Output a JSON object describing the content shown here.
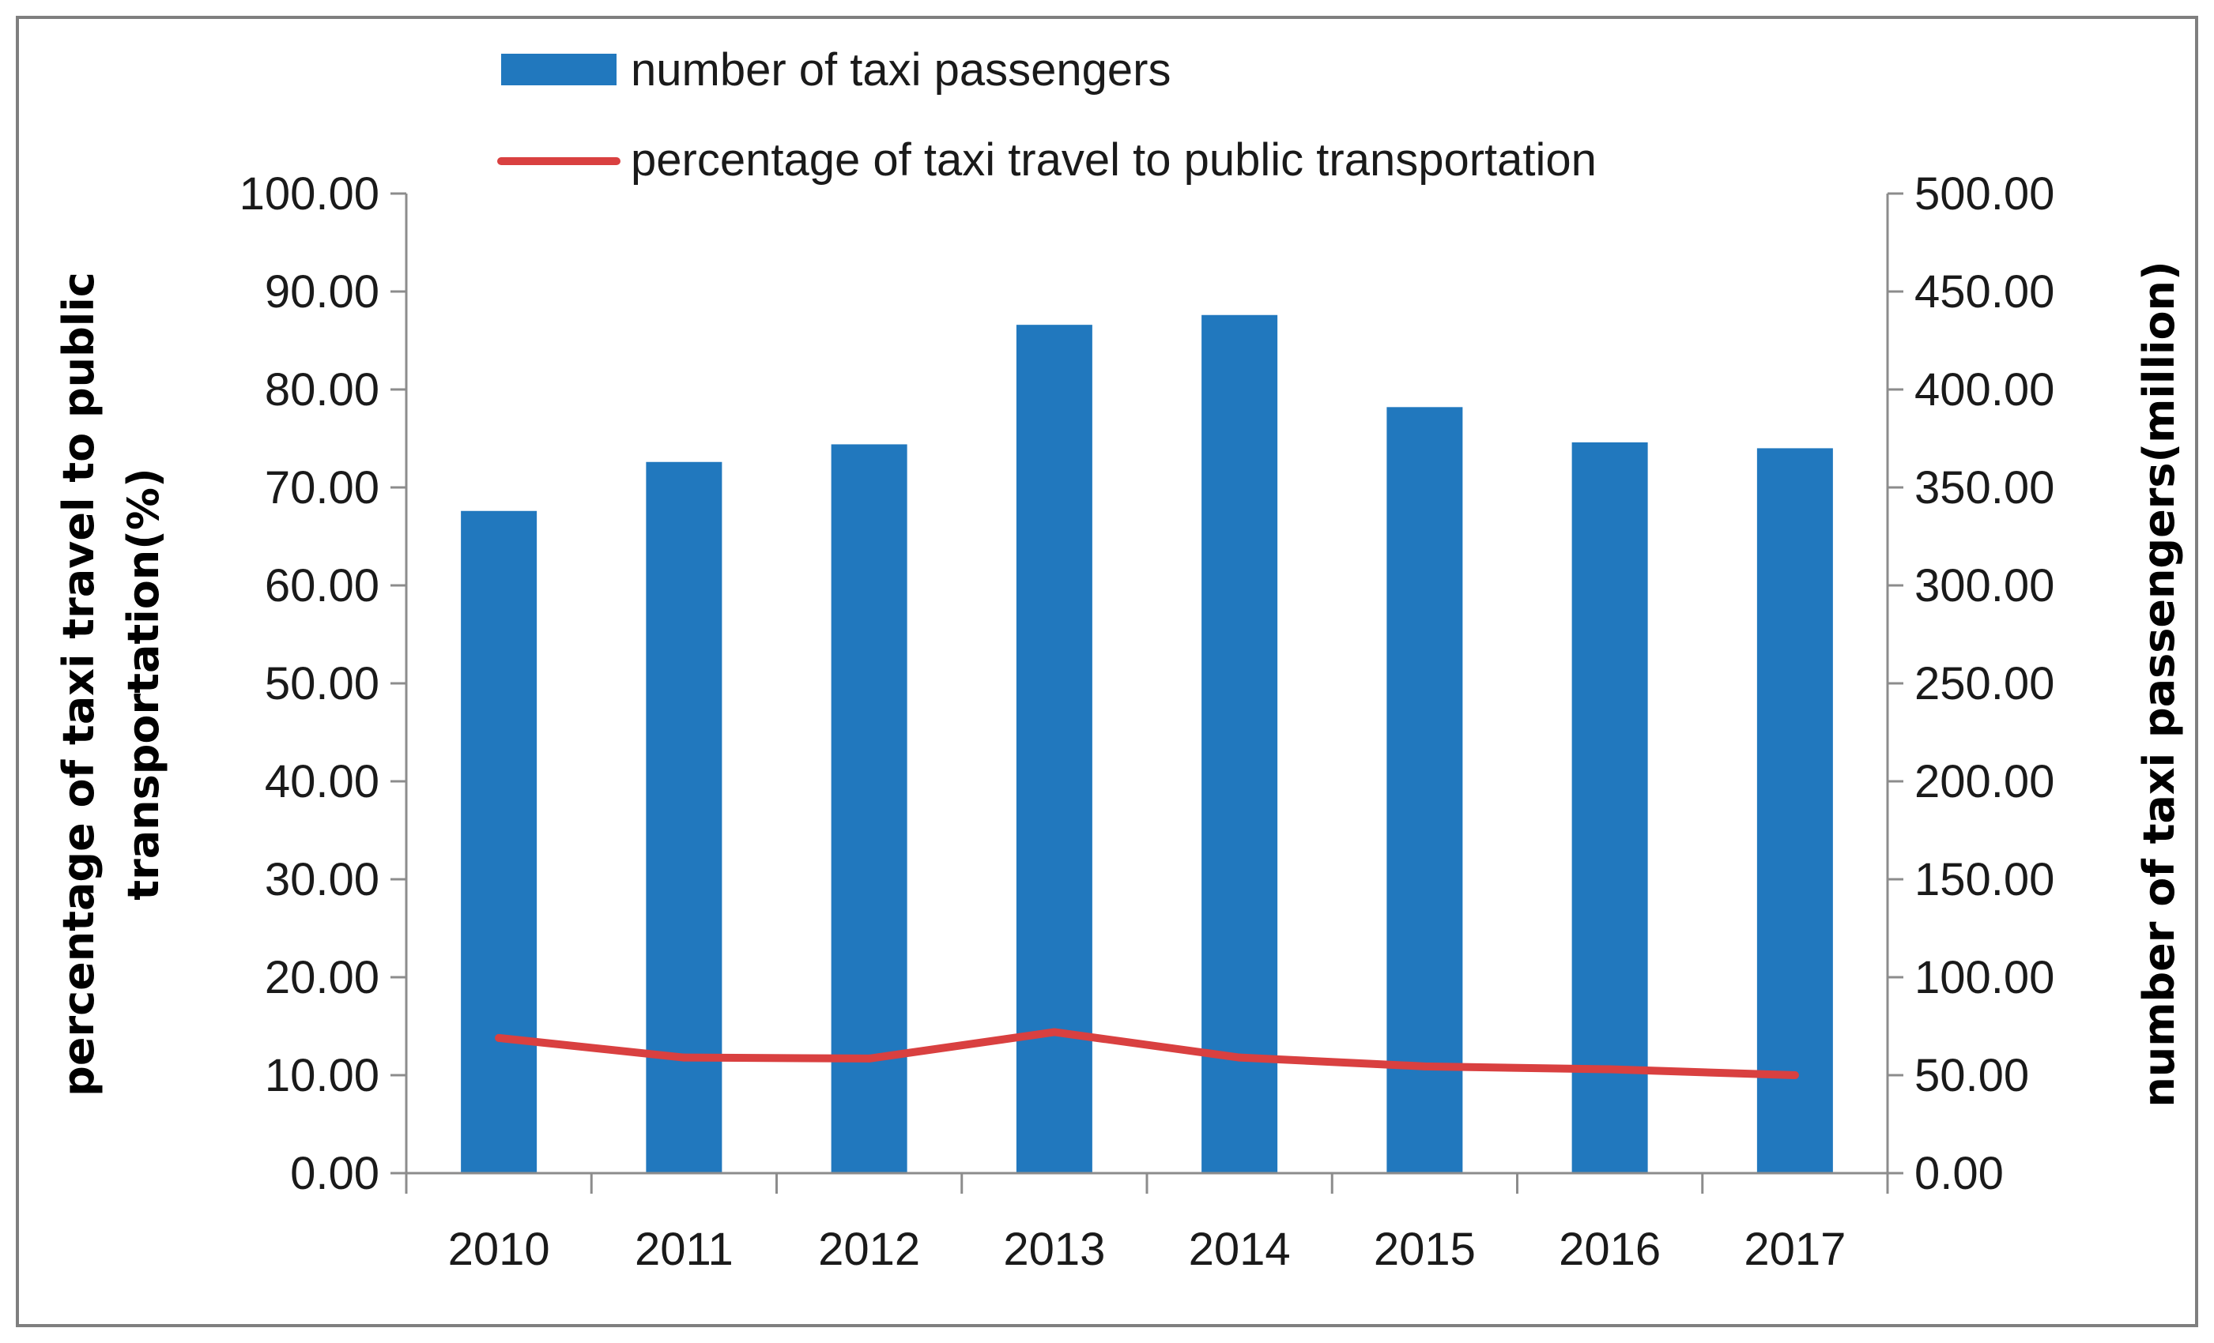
{
  "chart_data": {
    "type": "bar",
    "categories": [
      "2010",
      "2011",
      "2012",
      "2013",
      "2014",
      "2015",
      "2016",
      "2017"
    ],
    "series": [
      {
        "name": "number of taxi passengers",
        "kind": "bar",
        "axis": "right",
        "color": "#2178BE",
        "values": [
          338,
          363,
          372,
          433,
          438,
          391,
          373,
          370
        ]
      },
      {
        "name": "percentage of taxi travel to public transportation",
        "kind": "line",
        "axis": "left",
        "color": "#D94040",
        "values": [
          13.8,
          11.8,
          11.7,
          14.4,
          11.8,
          10.9,
          10.6,
          10.0
        ]
      }
    ],
    "y_left": {
      "label_line1": "percentage of taxi travel to public",
      "label_line2": "transportation(%)",
      "ylim": [
        0,
        100
      ],
      "ticks": [
        "0.00",
        "10.00",
        "20.00",
        "30.00",
        "40.00",
        "50.00",
        "60.00",
        "70.00",
        "80.00",
        "90.00",
        "100.00"
      ]
    },
    "y_right": {
      "label": "number of taxi passengers(million)",
      "ylim": [
        0,
        500
      ],
      "ticks": [
        "0.00",
        "50.00",
        "100.00",
        "150.00",
        "200.00",
        "250.00",
        "300.00",
        "350.00",
        "400.00",
        "450.00",
        "500.00"
      ]
    },
    "xlabel": "",
    "title": "",
    "grid": false,
    "legend_position": "top"
  }
}
